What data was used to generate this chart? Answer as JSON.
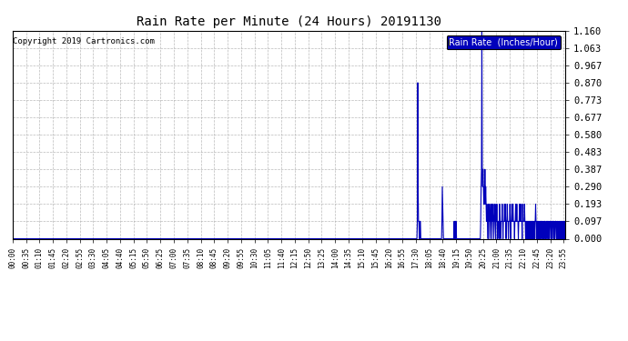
{
  "title": "Rain Rate per Minute (24 Hours) 20191130",
  "copyright": "Copyright 2019 Cartronics.com",
  "legend_label": "Rain Rate  (Inches/Hour)",
  "line_color": "#0000BB",
  "background_color": "#FFFFFF",
  "plot_bg_color": "#FFFFFF",
  "grid_color": "#AAAAAA",
  "ylim": [
    0.0,
    1.16
  ],
  "yticks": [
    0.0,
    0.097,
    0.193,
    0.29,
    0.387,
    0.483,
    0.58,
    0.677,
    0.773,
    0.87,
    0.967,
    1.063,
    1.16
  ],
  "ytick_labels": [
    "0.000",
    "0.097",
    "0.193",
    "0.290",
    "0.387",
    "0.483",
    "0.580",
    "0.677",
    "0.773",
    "0.870",
    "0.967",
    "1.063",
    "1.160"
  ],
  "num_minutes": 1440,
  "xtick_step": 35
}
